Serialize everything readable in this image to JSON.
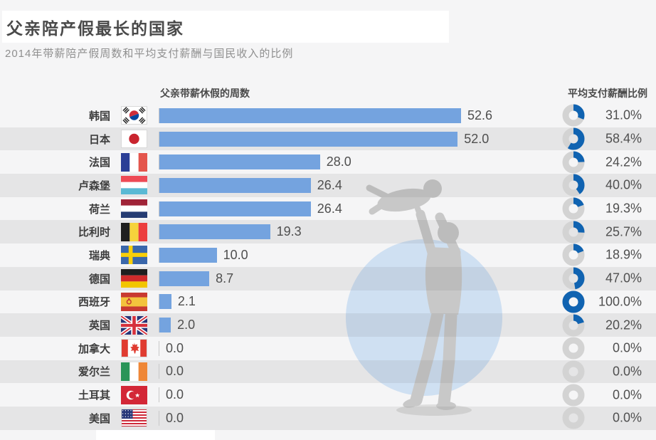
{
  "title": "父亲陪产假最长的国家",
  "subtitle": "2014年带薪陪产假周数和平均支付薪酬与国民收入的比例",
  "columns": {
    "weeks_header": "父亲带薪休假的周数",
    "pay_header": "平均支付薪酬比例"
  },
  "colors": {
    "bar": "#74a3df",
    "donut_fill": "#1063b1",
    "donut_track": "#d3d3d3",
    "stripe": "#e9e9ea",
    "watermark_circle": "#cfe0f2",
    "watermark_figure": "#c8c8c8"
  },
  "chart_data": {
    "type": "bar",
    "title": "父亲陪产假最长的国家",
    "subtitle": "2014年带薪陪产假周数和平均支付薪酬与国民收入的比例",
    "categories": [
      "韩国",
      "日本",
      "法国",
      "卢森堡",
      "荷兰",
      "比利时",
      "瑞典",
      "德国",
      "西班牙",
      "英国",
      "加拿大",
      "爱尔兰",
      "土耳其",
      "美国"
    ],
    "series": [
      {
        "name": "父亲带薪休假的周数",
        "type": "bar",
        "values": [
          52.6,
          52.0,
          28.0,
          26.4,
          26.4,
          19.3,
          10.0,
          8.7,
          2.1,
          2.0,
          0.0,
          0.0,
          0.0,
          0.0
        ]
      },
      {
        "name": "平均支付薪酬比例",
        "type": "donut",
        "unit": "%",
        "values": [
          31.0,
          58.4,
          24.2,
          40.0,
          19.3,
          25.7,
          18.9,
          47.0,
          100.0,
          20.2,
          0.0,
          0.0,
          0.0,
          0.0
        ]
      }
    ],
    "xlim": [
      0,
      52.6
    ],
    "grid": false,
    "legend_position": "none"
  },
  "rows": [
    {
      "country": "韩国",
      "flag": "kr",
      "weeks": 52.6,
      "weeks_label": "52.6",
      "pay": 31.0,
      "pay_label": "31.0%"
    },
    {
      "country": "日本",
      "flag": "jp",
      "weeks": 52.0,
      "weeks_label": "52.0",
      "pay": 58.4,
      "pay_label": "58.4%"
    },
    {
      "country": "法国",
      "flag": "fr",
      "weeks": 28.0,
      "weeks_label": "28.0",
      "pay": 24.2,
      "pay_label": "24.2%"
    },
    {
      "country": "卢森堡",
      "flag": "lu",
      "weeks": 26.4,
      "weeks_label": "26.4",
      "pay": 40.0,
      "pay_label": "40.0%"
    },
    {
      "country": "荷兰",
      "flag": "nl",
      "weeks": 26.4,
      "weeks_label": "26.4",
      "pay": 19.3,
      "pay_label": "19.3%"
    },
    {
      "country": "比利时",
      "flag": "be",
      "weeks": 19.3,
      "weeks_label": "19.3",
      "pay": 25.7,
      "pay_label": "25.7%"
    },
    {
      "country": "瑞典",
      "flag": "se",
      "weeks": 10.0,
      "weeks_label": "10.0",
      "pay": 18.9,
      "pay_label": "18.9%"
    },
    {
      "country": "德国",
      "flag": "de",
      "weeks": 8.7,
      "weeks_label": "8.7",
      "pay": 47.0,
      "pay_label": "47.0%"
    },
    {
      "country": "西班牙",
      "flag": "es",
      "weeks": 2.1,
      "weeks_label": "2.1",
      "pay": 100.0,
      "pay_label": "100.0%"
    },
    {
      "country": "英国",
      "flag": "gb",
      "weeks": 2.0,
      "weeks_label": "2.0",
      "pay": 20.2,
      "pay_label": "20.2%"
    },
    {
      "country": "加拿大",
      "flag": "ca",
      "weeks": 0.0,
      "weeks_label": "0.0",
      "pay": 0.0,
      "pay_label": "0.0%"
    },
    {
      "country": "爱尔兰",
      "flag": "ie",
      "weeks": 0.0,
      "weeks_label": "0.0",
      "pay": 0.0,
      "pay_label": "0.0%"
    },
    {
      "country": "土耳其",
      "flag": "tr",
      "weeks": 0.0,
      "weeks_label": "0.0",
      "pay": 0.0,
      "pay_label": "0.0%"
    },
    {
      "country": "美国",
      "flag": "us",
      "weeks": 0.0,
      "weeks_label": "0.0",
      "pay": 0.0,
      "pay_label": "0.0%"
    }
  ]
}
